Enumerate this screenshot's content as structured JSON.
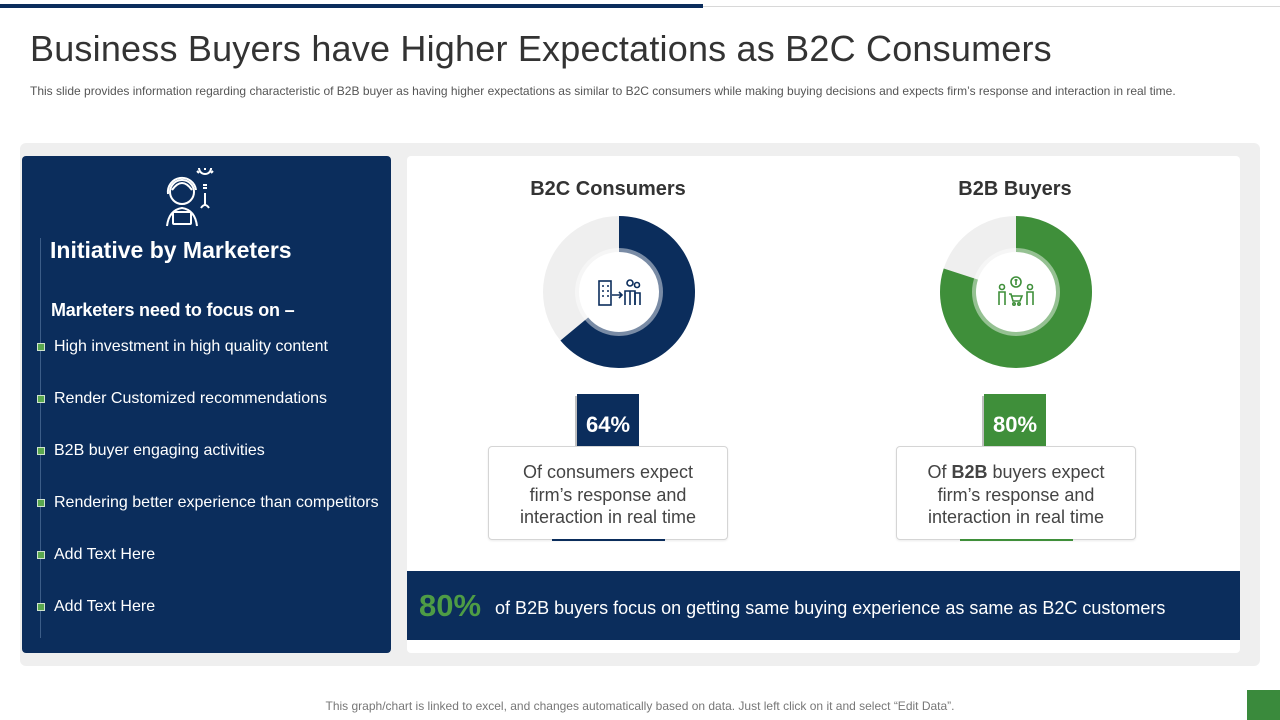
{
  "title": "Business Buyers have Higher Expectations as B2C Consumers",
  "subtitle": "This slide provides information regarding characteristic of B2B buyer as having higher expectations as similar to B2C consumers while making buying decisions and expects firm’s response and interaction in real time.",
  "left_panel": {
    "heading": "Initiative by Marketers",
    "subheading": "Marketers need to focus on –",
    "items": [
      "High investment in high quality content",
      "Render Customized recommendations",
      "B2B buyer engaging activities",
      "Rendering better experience than competitors",
      "Add Text Here",
      "Add Text Here"
    ],
    "icon": "marketer-idea-icon"
  },
  "colors": {
    "navy": "#0b2d5c",
    "green": "#3f8f3a",
    "track": "#efefef"
  },
  "chart_data": [
    {
      "type": "pie",
      "title": "B2C Consumers",
      "value_percent": 64,
      "label": "64%",
      "description_lines": [
        "Of consumers expect",
        "firm’s response and",
        "interaction in real time"
      ],
      "icon": "building-person-icon",
      "color": "#0b2d5c"
    },
    {
      "type": "pie",
      "title": "B2B Buyers",
      "value_percent": 80,
      "label": "80%",
      "description_prefix": "Of ",
      "description_bold": "B2B",
      "description_lines": [
        " buyers expect",
        "firm’s response and",
        "interaction in real time"
      ],
      "icon": "buyers-cart-icon",
      "color": "#3f8f3a"
    }
  ],
  "banner": {
    "percent": "80%",
    "text": "of B2B buyers focus on getting same buying experience as same as B2C customers"
  },
  "footer": "This graph/chart is linked to excel, and changes automatically based on data. Just left click on it and select “Edit Data”."
}
